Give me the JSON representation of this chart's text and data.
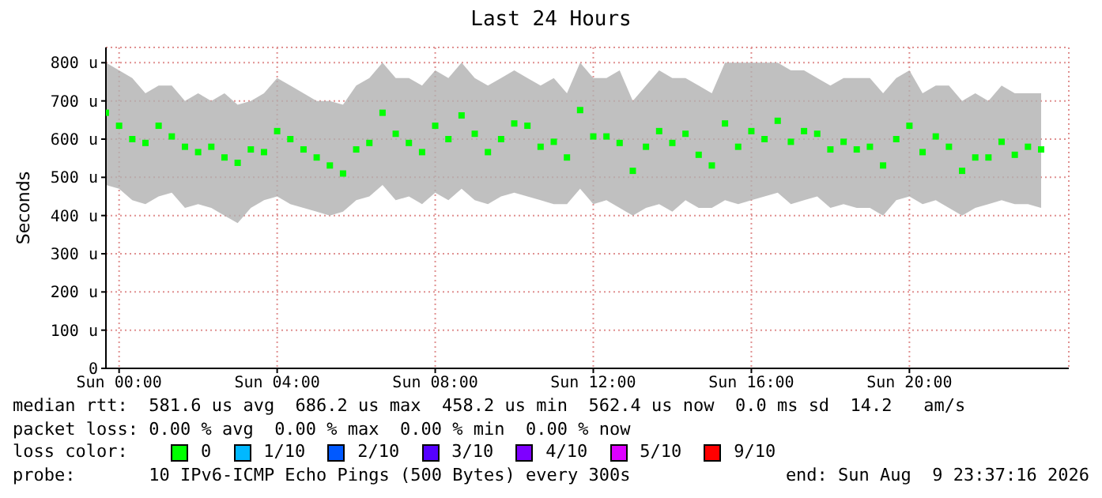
{
  "chart_data": {
    "type": "scatter",
    "title": "Last 24 Hours",
    "ylabel": "Seconds",
    "x": [
      "2026-08-08T23:40",
      "2026-08-09T00:00",
      "2026-08-09T00:20",
      "2026-08-09T00:40",
      "2026-08-09T01:00",
      "2026-08-09T01:20",
      "2026-08-09T01:40",
      "2026-08-09T02:00",
      "2026-08-09T02:20",
      "2026-08-09T02:40",
      "2026-08-09T03:00",
      "2026-08-09T03:20",
      "2026-08-09T03:40",
      "2026-08-09T04:00",
      "2026-08-09T04:20",
      "2026-08-09T04:40",
      "2026-08-09T05:00",
      "2026-08-09T05:20",
      "2026-08-09T05:40",
      "2026-08-09T06:00",
      "2026-08-09T06:20",
      "2026-08-09T06:40",
      "2026-08-09T07:00",
      "2026-08-09T07:20",
      "2026-08-09T07:40",
      "2026-08-09T08:00",
      "2026-08-09T08:20",
      "2026-08-09T08:40",
      "2026-08-09T09:00",
      "2026-08-09T09:20",
      "2026-08-09T09:40",
      "2026-08-09T10:00",
      "2026-08-09T10:20",
      "2026-08-09T10:40",
      "2026-08-09T11:00",
      "2026-08-09T11:20",
      "2026-08-09T11:40",
      "2026-08-09T12:00",
      "2026-08-09T12:20",
      "2026-08-09T12:40",
      "2026-08-09T13:00",
      "2026-08-09T13:20",
      "2026-08-09T13:40",
      "2026-08-09T14:00",
      "2026-08-09T14:20",
      "2026-08-09T14:40",
      "2026-08-09T15:00",
      "2026-08-09T15:20",
      "2026-08-09T15:40",
      "2026-08-09T16:00",
      "2026-08-09T16:20",
      "2026-08-09T16:40",
      "2026-08-09T17:00",
      "2026-08-09T17:20",
      "2026-08-09T17:40",
      "2026-08-09T18:00",
      "2026-08-09T18:20",
      "2026-08-09T18:40",
      "2026-08-09T19:00",
      "2026-08-09T19:20",
      "2026-08-09T19:40",
      "2026-08-09T20:00",
      "2026-08-09T20:20",
      "2026-08-09T20:40",
      "2026-08-09T21:00",
      "2026-08-09T21:20",
      "2026-08-09T21:40",
      "2026-08-09T22:00",
      "2026-08-09T22:20",
      "2026-08-09T22:40",
      "2026-08-09T23:00",
      "2026-08-09T23:20"
    ],
    "series": [
      {
        "color": "#00ff00",
        "values": [
          669,
          635,
          600,
          590,
          635,
          607,
          580,
          566,
          580,
          552,
          538,
          573,
          566,
          621,
          600,
          573,
          552,
          531,
          510,
          573,
          590,
          669,
          614,
          590,
          566,
          635,
          600,
          662,
          614,
          566,
          600,
          641,
          635,
          580,
          593,
          552,
          676,
          607,
          607,
          590,
          517,
          580,
          621,
          590,
          614,
          559,
          531,
          641,
          580,
          621,
          600,
          648,
          593,
          621,
          614,
          573,
          593,
          573,
          580,
          531,
          600,
          635,
          566,
          607,
          580,
          517,
          552,
          552,
          593,
          559,
          580,
          573
        ],
        "lower": [
          480,
          470,
          440,
          430,
          450,
          460,
          420,
          430,
          420,
          400,
          380,
          420,
          440,
          450,
          430,
          420,
          410,
          400,
          410,
          440,
          450,
          480,
          440,
          450,
          430,
          460,
          440,
          470,
          440,
          430,
          450,
          460,
          450,
          440,
          430,
          430,
          470,
          430,
          440,
          420,
          400,
          420,
          430,
          410,
          440,
          420,
          420,
          440,
          430,
          440,
          450,
          460,
          430,
          440,
          450,
          420,
          430,
          420,
          420,
          400,
          440,
          450,
          430,
          440,
          420,
          400,
          420,
          430,
          440,
          430,
          430,
          420
        ],
        "upper": [
          800,
          780,
          760,
          720,
          740,
          740,
          700,
          720,
          700,
          720,
          690,
          700,
          720,
          760,
          740,
          720,
          700,
          700,
          690,
          740,
          760,
          800,
          760,
          760,
          740,
          780,
          760,
          800,
          760,
          740,
          760,
          780,
          760,
          740,
          760,
          720,
          800,
          760,
          760,
          780,
          700,
          740,
          780,
          760,
          760,
          740,
          720,
          800,
          800,
          800,
          800,
          800,
          780,
          780,
          760,
          740,
          760,
          760,
          760,
          720,
          760,
          780,
          720,
          740,
          740,
          700,
          720,
          700,
          740,
          720,
          720,
          720
        ]
      }
    ],
    "xlim": [
      "2026-08-08T23:40",
      "2026-08-10T00:02"
    ],
    "xticks": [
      {
        "value": "2026-08-09T00:00",
        "label": "Sun 00:00"
      },
      {
        "value": "2026-08-09T04:00",
        "label": "Sun 04:00"
      },
      {
        "value": "2026-08-09T08:00",
        "label": "Sun 08:00"
      },
      {
        "value": "2026-08-09T12:00",
        "label": "Sun 12:00"
      },
      {
        "value": "2026-08-09T16:00",
        "label": "Sun 16:00"
      },
      {
        "value": "2026-08-09T20:00",
        "label": "Sun 20:00"
      }
    ],
    "ylim": [
      0,
      840
    ],
    "yticks": [
      0,
      {
        "value": 100,
        "label": "100 u"
      },
      {
        "value": 200,
        "label": "200 u"
      },
      {
        "value": 300,
        "label": "300 u"
      },
      {
        "value": 400,
        "label": "400 u"
      },
      {
        "value": 500,
        "label": "500 u"
      },
      {
        "value": 600,
        "label": "600 u"
      },
      {
        "value": 700,
        "label": "700 u"
      },
      {
        "value": 800,
        "label": "800 u"
      }
    ],
    "grid": true,
    "marker": "square",
    "annotations": [
      "median rtt:  581.6 us avg  686.2 us max  458.2 us min  562.4 us now  0.0 ms sd  14.2   am/s",
      "packet loss: 0.00 % avg  0.00 % max  0.00 % min  0.00 % now",
      "loss color:",
      "0",
      "1/10",
      "2/10",
      "3/10",
      "4/10",
      "5/10",
      "9/10",
      "probe:       10 IPv6-ICMP Echo Pings (500 Bytes) every 300s",
      "end: Sun Aug  9 23:37:16 2026"
    ]
  }
}
